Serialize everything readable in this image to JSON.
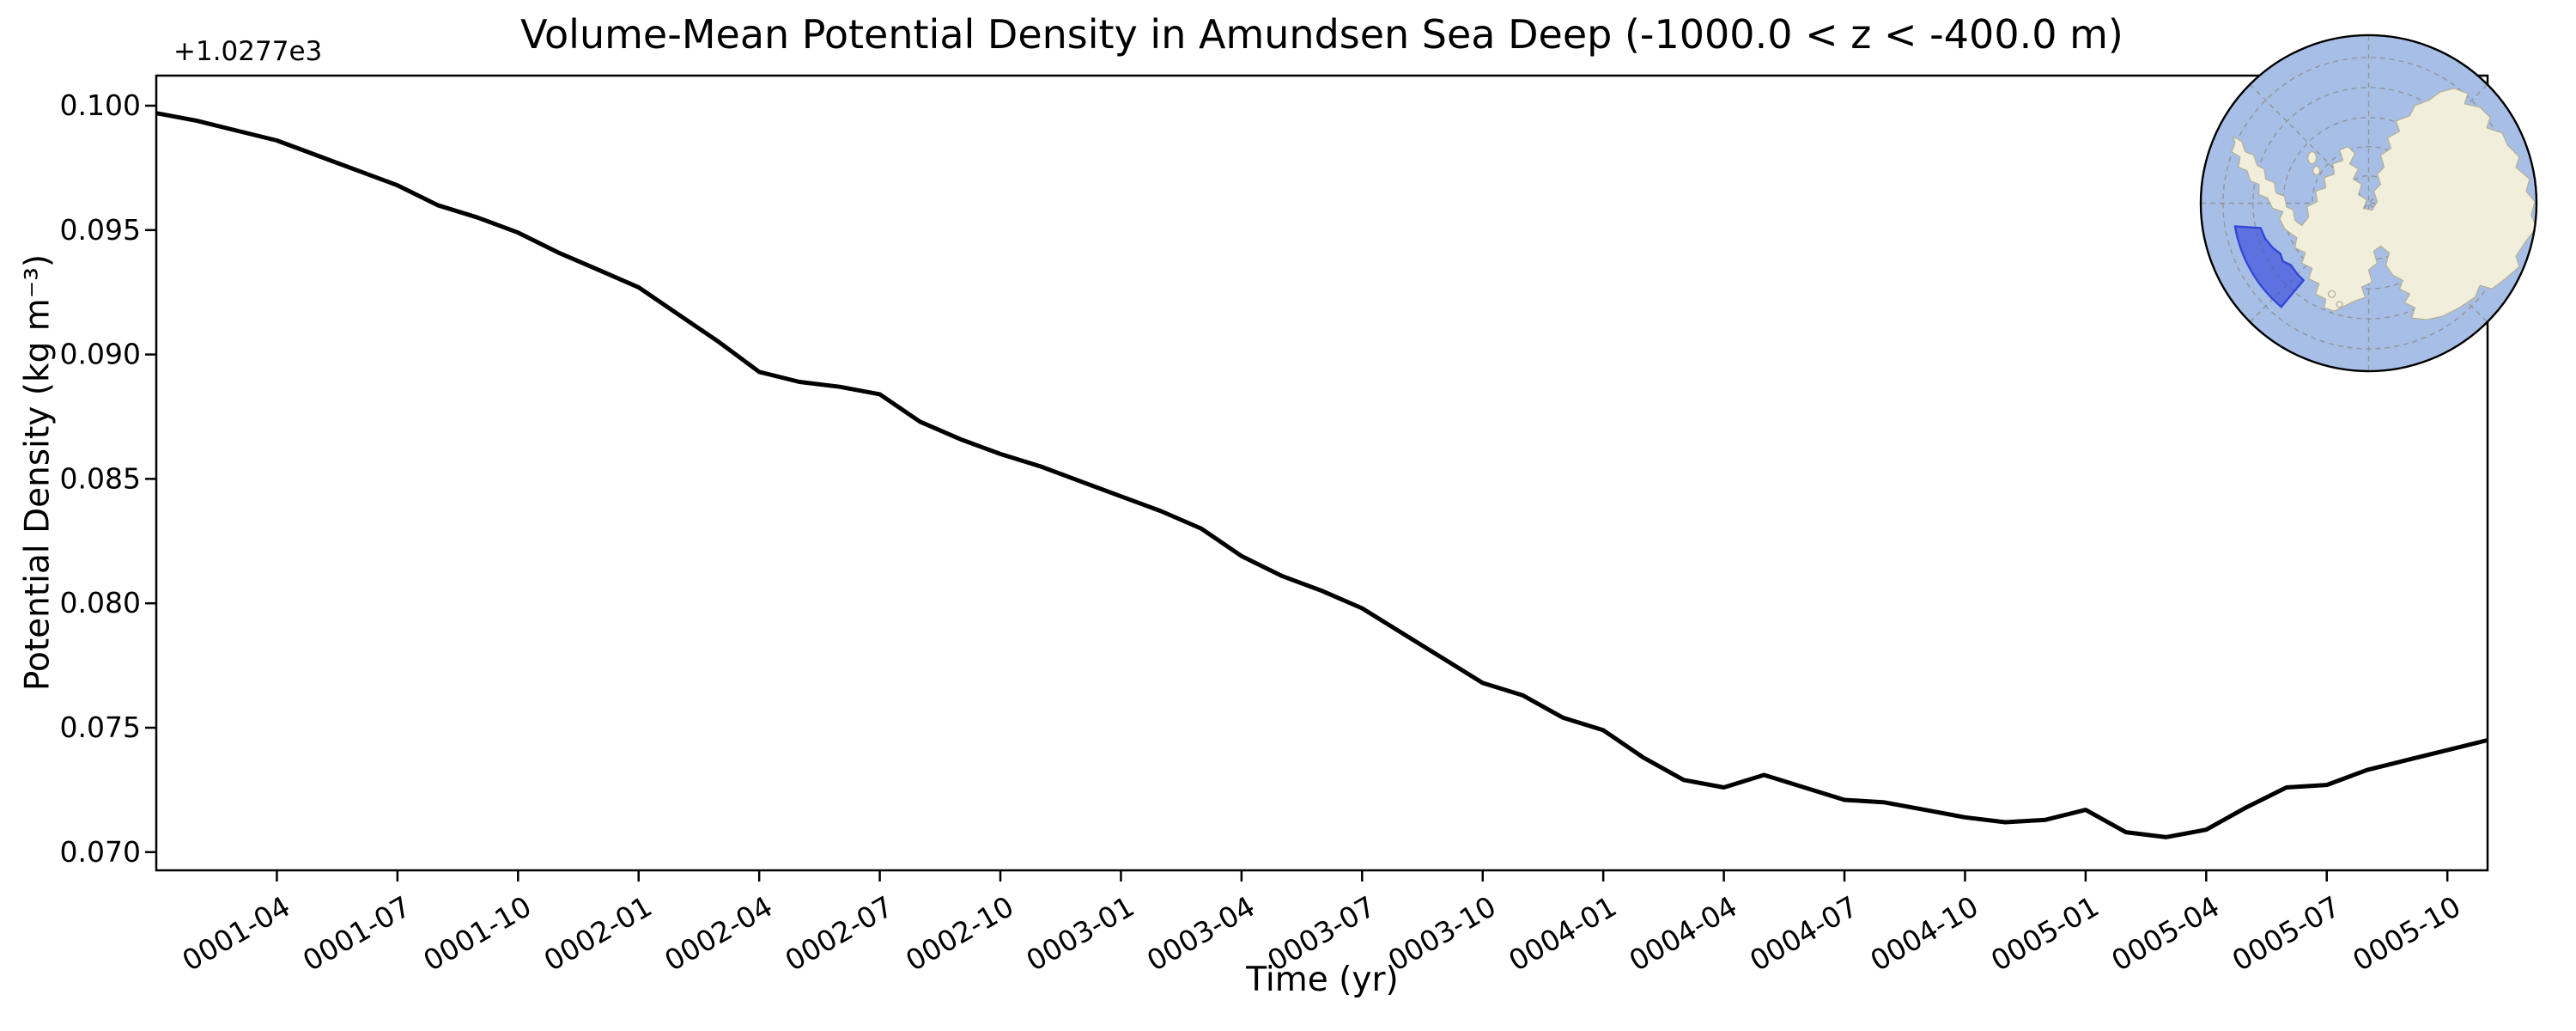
{
  "figure": {
    "background_color": "#ffffff"
  },
  "chart_data": {
    "type": "line",
    "title": "Volume-Mean Potential Density in Amundsen Sea Deep (-1000.0 < z < -400.0 m)",
    "xlabel": "Time (yr)",
    "ylabel": "Potential Density (kg m⁻³)",
    "y_offset_text": "+1.0277e3",
    "y_offset_value": 1027.7,
    "grid": false,
    "legend": null,
    "line_color": "#000000",
    "line_width": 5,
    "ylim": [
      0.0693,
      0.1012
    ],
    "y_tick_labels": [
      "0.100",
      "0.095",
      "0.090",
      "0.085",
      "0.080",
      "0.075",
      "0.070"
    ],
    "x_tick_labels": [
      "0001-04",
      "0001-07",
      "0001-10",
      "0002-01",
      "0002-04",
      "0002-07",
      "0002-10",
      "0003-01",
      "0003-04",
      "0003-07",
      "0003-10",
      "0004-01",
      "0004-04",
      "0004-07",
      "0004-10",
      "0005-01",
      "0005-04",
      "0005-07",
      "0005-10"
    ],
    "x": [
      "0001-01",
      "0001-02",
      "0001-03",
      "0001-04",
      "0001-05",
      "0001-06",
      "0001-07",
      "0001-08",
      "0001-09",
      "0001-10",
      "0001-11",
      "0001-12",
      "0002-01",
      "0002-02",
      "0002-03",
      "0002-04",
      "0002-05",
      "0002-06",
      "0002-07",
      "0002-08",
      "0002-09",
      "0002-10",
      "0002-11",
      "0002-12",
      "0003-01",
      "0003-02",
      "0003-03",
      "0003-04",
      "0003-05",
      "0003-06",
      "0003-07",
      "0003-08",
      "0003-09",
      "0003-10",
      "0003-11",
      "0003-12",
      "0004-01",
      "0004-02",
      "0004-03",
      "0004-04",
      "0004-05",
      "0004-06",
      "0004-07",
      "0004-08",
      "0004-09",
      "0004-10",
      "0004-11",
      "0004-12",
      "0005-01",
      "0005-02",
      "0005-03",
      "0005-04",
      "0005-05",
      "0005-06",
      "0005-07",
      "0005-08",
      "0005-09",
      "0005-10",
      "0005-11"
    ],
    "values": [
      0.0997,
      0.0994,
      0.099,
      0.0986,
      0.098,
      0.0974,
      0.0968,
      0.096,
      0.0955,
      0.0949,
      0.0941,
      0.0934,
      0.0927,
      0.0916,
      0.0905,
      0.0893,
      0.0889,
      0.0887,
      0.0884,
      0.0873,
      0.0866,
      0.086,
      0.0855,
      0.0849,
      0.0843,
      0.0837,
      0.083,
      0.0819,
      0.0811,
      0.0805,
      0.0798,
      0.0788,
      0.0778,
      0.0768,
      0.0763,
      0.0754,
      0.0749,
      0.0738,
      0.0729,
      0.0726,
      0.0731,
      0.0726,
      0.0721,
      0.072,
      0.0717,
      0.0714,
      0.0712,
      0.0713,
      0.0717,
      0.0708,
      0.0706,
      0.0709,
      0.0718,
      0.0726,
      0.0727,
      0.0733,
      0.0737,
      0.0741,
      0.0745
    ]
  },
  "map": {
    "description": "south-polar inset map with highlighted Amundsen Sea region",
    "ocean_color": "#a7bfe6",
    "land_color": "#f1efdc",
    "region_fill_color": "#4155dc",
    "region_name": "Amundsen Sea region"
  }
}
